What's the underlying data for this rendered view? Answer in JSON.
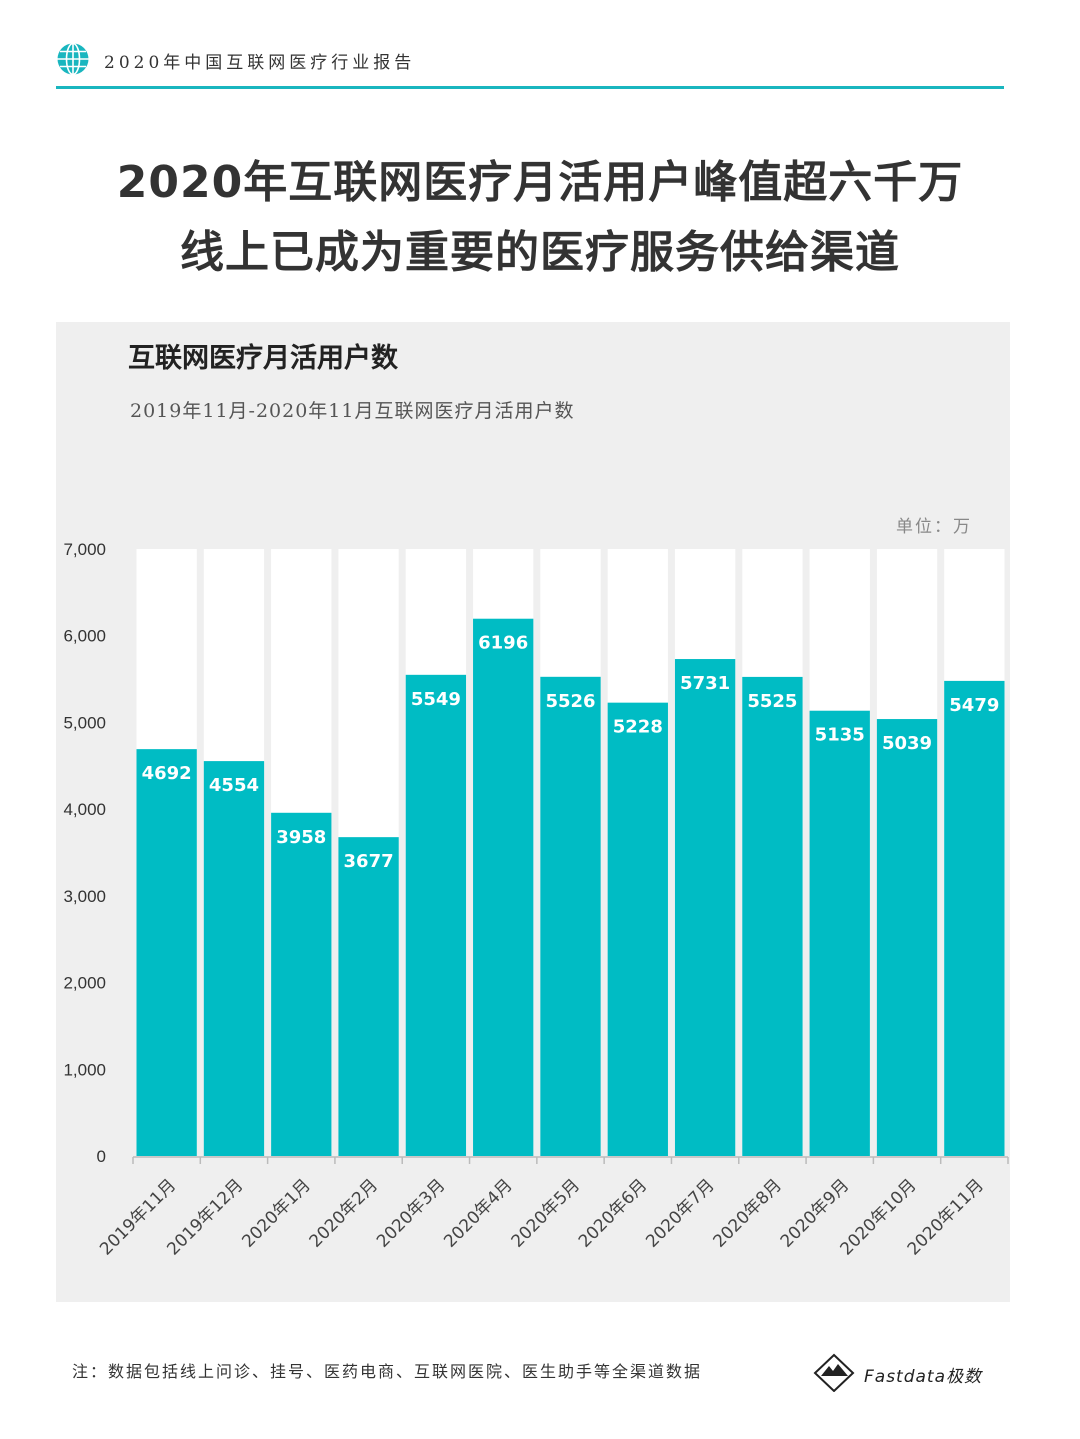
{
  "header": {
    "report_title": "2020年中国互联网医疗行业报告",
    "icon": "globe-icon"
  },
  "headline": {
    "line1": "2020年互联网医疗月活用户峰值超六千万",
    "line2": "线上已成为重要的医疗服务供给渠道"
  },
  "colors": {
    "accent": "#19b6bf",
    "bar": "#00bcc4",
    "panel": "#efefef",
    "text_dark": "#333333"
  },
  "chart_data": {
    "type": "bar",
    "title": "互联网医疗月活用户数",
    "subtitle": "2019年11月-2020年11月互联网医疗月活用户数",
    "unit_label": "单位：万",
    "categories": [
      "2019年11月",
      "2019年12月",
      "2020年1月",
      "2020年2月",
      "2020年3月",
      "2020年4月",
      "2020年5月",
      "2020年6月",
      "2020年7月",
      "2020年8月",
      "2020年9月",
      "2020年10月",
      "2020年11月"
    ],
    "values": [
      4692,
      4554,
      3958,
      3677,
      5549,
      6196,
      5526,
      5228,
      5731,
      5525,
      5135,
      5039,
      5479
    ],
    "data_labels": [
      "4692",
      "4554",
      "3958",
      "3677",
      "5549",
      "6196",
      "5526",
      "5228",
      "5731",
      "5525",
      "5135",
      "5039",
      "5479"
    ],
    "ylim": [
      0,
      7000
    ],
    "yticks": [
      0,
      1000,
      2000,
      3000,
      4000,
      5000,
      6000,
      7000
    ],
    "ytick_labels": [
      "0",
      "1,000",
      "2,000",
      "3,000",
      "4,000",
      "5,000",
      "6,000",
      "7,000"
    ],
    "grid": "vertical-columns",
    "legend": "none"
  },
  "footer": {
    "note": "注：数据包括线上问诊、挂号、医药电商、互联网医院、医生助手等全渠道数据",
    "logo_text": "Fastdata极数"
  }
}
